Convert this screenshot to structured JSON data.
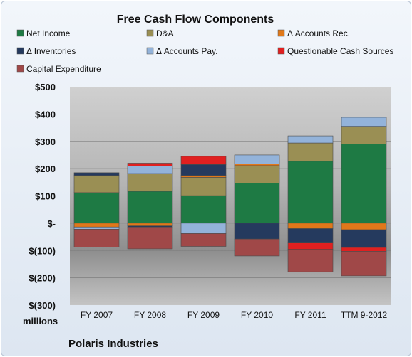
{
  "chart_data": {
    "type": "bar",
    "stacked": true,
    "title": "Free Cash Flow Components",
    "unit_label": "millions",
    "company": "Polaris Industries",
    "categories": [
      "FY 2007",
      "FY 2008",
      "FY 2009",
      "FY 2010",
      "FY 2011",
      "TTM 9-2012"
    ],
    "ylim": [
      -300,
      500
    ],
    "yticks": [
      500,
      400,
      300,
      200,
      100,
      0,
      -100,
      -200,
      -300
    ],
    "ytick_labels": [
      "$500",
      "$400",
      "$300",
      "$200",
      "$100",
      "$-",
      "$(100)",
      "$(200)",
      "$(300)"
    ],
    "grid": true,
    "legend_position": "top",
    "series": [
      {
        "name": "Net Income",
        "color": "#1e7a44",
        "values": [
          112,
          117,
          101,
          147,
          227,
          290
        ]
      },
      {
        "name": "D&A",
        "color": "#9a8f54",
        "values": [
          63,
          65,
          67,
          64,
          67,
          65
        ]
      },
      {
        "name": "Δ Accounts Rec.",
        "color": "#e0781a",
        "values": [
          -14,
          -10,
          7,
          6,
          -20,
          -24
        ]
      },
      {
        "name": "Δ Inventories",
        "color": "#253a5e",
        "values": [
          10,
          -4,
          40,
          -58,
          -50,
          -65
        ]
      },
      {
        "name": "Δ Accounts Pay.",
        "color": "#93b3da",
        "values": [
          -8,
          28,
          -38,
          33,
          26,
          33
        ]
      },
      {
        "name": "Questionable Cash Sources",
        "color": "#e02020",
        "values": [
          0,
          10,
          30,
          0,
          -26,
          -14
        ]
      },
      {
        "name": "Capital Expenditure",
        "color": "#a04848",
        "values": [
          -66,
          -80,
          -47,
          -62,
          -82,
          -90
        ]
      }
    ]
  }
}
